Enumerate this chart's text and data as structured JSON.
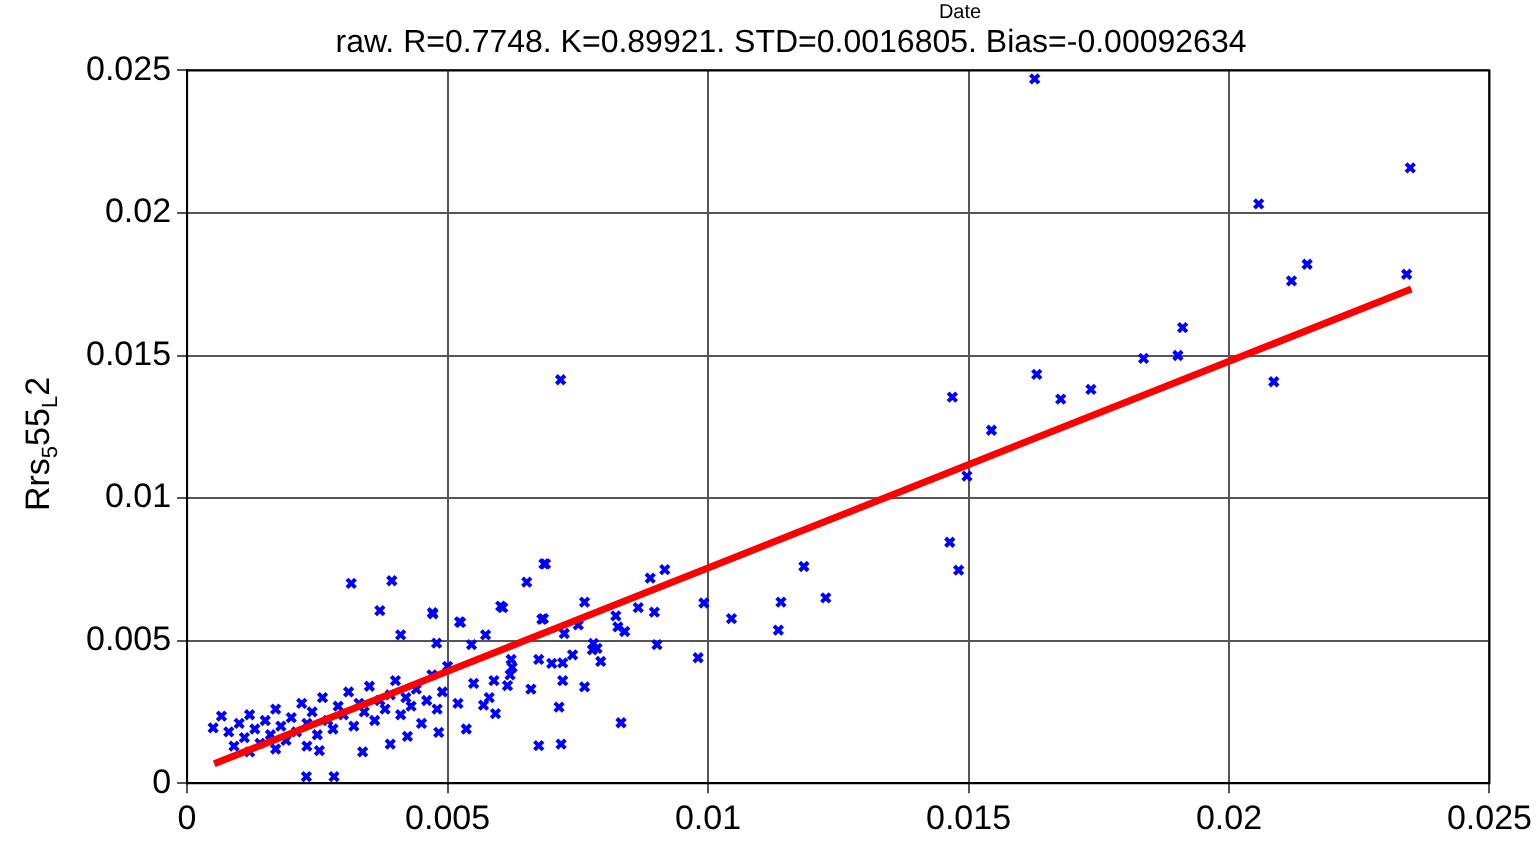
{
  "chart_data": {
    "type": "scatter",
    "title": "raw. R=0.7748. K=0.89921. STD=0.0016805. Bias=-0.00092634",
    "ylabel": "Rrs$_{5}$55$_{L}$2",
    "annotations": [
      "Date"
    ],
    "xlim": [
      0,
      0.025
    ],
    "xticks": [
      0,
      0.005,
      0.01,
      0.015,
      0.02,
      0.025
    ],
    "ylim": [
      0,
      0.025
    ],
    "yticks": [
      0,
      0.005,
      0.01,
      0.015,
      0.02,
      0.025
    ],
    "grid": true,
    "series": [
      {
        "marker": "cross",
        "color": "#0000ff",
        "x": [
          0.01627,
          0.02348,
          0.02057,
          0.0212,
          0.0215,
          0.02341,
          0.01911,
          0.01836,
          0.01902,
          0.01631,
          0.01677,
          0.01735,
          0.01469,
          0.01544,
          0.01497,
          0.02086,
          0.01464,
          0.01481,
          0.00717,
          0.01184,
          0.01226,
          0.00992,
          0.01045,
          0.0114,
          0.01135,
          0.00981,
          0.00917,
          0.00889,
          0.00685,
          0.00652,
          0.00763,
          0.00606,
          0.00866,
          0.00897,
          0.00823,
          0.00684,
          0.00525,
          0.00471,
          0.00827,
          0.0084,
          0.00724,
          0.00751,
          0.00902,
          0.00787,
          0.00778,
          0.00794,
          0.00721,
          0.00721,
          0.00763,
          0.00675,
          0.00622,
          0.00624,
          0.00589,
          0.00615,
          0.00573,
          0.00546,
          0.00479,
          0.00315,
          0.00393,
          0.00688,
          0.0037,
          0.00472,
          0.0041,
          0.00602,
          0.00681,
          0.00523,
          0.00833,
          0.00675,
          0.00718,
          0.00714,
          0.00229,
          0.00282,
          0.00592,
          0.00569,
          0.00337,
          0.0039,
          0.00254,
          0.0005,
          0.00066,
          0.00423,
          0.00483,
          0.00536,
          0.0008,
          0.0009,
          0.001,
          0.0011,
          0.0012,
          0.0012,
          0.0013,
          0.0014,
          0.0015,
          0.0016,
          0.0017,
          0.0017,
          0.0018,
          0.0019,
          0.002,
          0.0021,
          0.0022,
          0.0023,
          0.0023,
          0.0024,
          0.0025,
          0.0026,
          0.0027,
          0.0028,
          0.0029,
          0.003,
          0.0031,
          0.0032,
          0.0033,
          0.0034,
          0.0035,
          0.0036,
          0.0037,
          0.0038,
          0.0039,
          0.004,
          0.0041,
          0.0042,
          0.0043,
          0.0044,
          0.0045,
          0.0046,
          0.0047,
          0.0048,
          0.0049,
          0.005,
          0.0052,
          0.0055,
          0.0058,
          0.0062,
          0.0066,
          0.007,
          0.0074,
          0.0078
        ],
        "values": [
          0.0247,
          0.02158,
          0.02032,
          0.01762,
          0.0182,
          0.01785,
          0.01598,
          0.0149,
          0.015,
          0.01434,
          0.01347,
          0.01381,
          0.01354,
          0.01238,
          0.01077,
          0.01408,
          0.00845,
          0.00747,
          0.01415,
          0.0076,
          0.0065,
          0.00632,
          0.00577,
          0.00635,
          0.00537,
          0.0044,
          0.00749,
          0.00719,
          0.00769,
          0.00705,
          0.00635,
          0.00616,
          0.00616,
          0.006,
          0.00587,
          0.00577,
          0.00564,
          0.00598,
          0.00548,
          0.00532,
          0.00525,
          0.00555,
          0.00486,
          0.00473,
          0.00468,
          0.00427,
          0.00422,
          0.0036,
          0.00338,
          0.00434,
          0.00434,
          0.00406,
          0.0036,
          0.00342,
          0.0052,
          0.00486,
          0.00491,
          0.00701,
          0.0071,
          0.00769,
          0.00605,
          0.00594,
          0.0052,
          0.00621,
          0.00575,
          0.00566,
          0.00212,
          0.00132,
          0.00137,
          0.00267,
          0.00023,
          0.00023,
          0.00244,
          0.00274,
          0.0011,
          0.00137,
          0.00114,
          0.00194,
          0.00235,
          0.00164,
          0.00178,
          0.0019,
          0.0018,
          0.0013,
          0.0021,
          0.0016,
          0.0011,
          0.0024,
          0.0019,
          0.0014,
          0.0022,
          0.0017,
          0.0012,
          0.0026,
          0.002,
          0.0015,
          0.0023,
          0.0018,
          0.0028,
          0.0013,
          0.0021,
          0.0025,
          0.0017,
          0.003,
          0.0022,
          0.0019,
          0.0027,
          0.0024,
          0.0032,
          0.002,
          0.0028,
          0.0025,
          0.0034,
          0.0022,
          0.0029,
          0.0026,
          0.0031,
          0.0036,
          0.0024,
          0.003,
          0.0027,
          0.0033,
          0.0021,
          0.0029,
          0.0038,
          0.0026,
          0.0032,
          0.0041,
          0.0028,
          0.0035,
          0.003,
          0.0038,
          0.0033,
          0.0042,
          0.0045,
          0.0049
        ]
      },
      {
        "type": "line",
        "marker": "none",
        "color": "#ff0000",
        "x": [
          0.00052,
          0.0235
        ],
        "values": [
          0.00068,
          0.01733
        ]
      }
    ]
  }
}
